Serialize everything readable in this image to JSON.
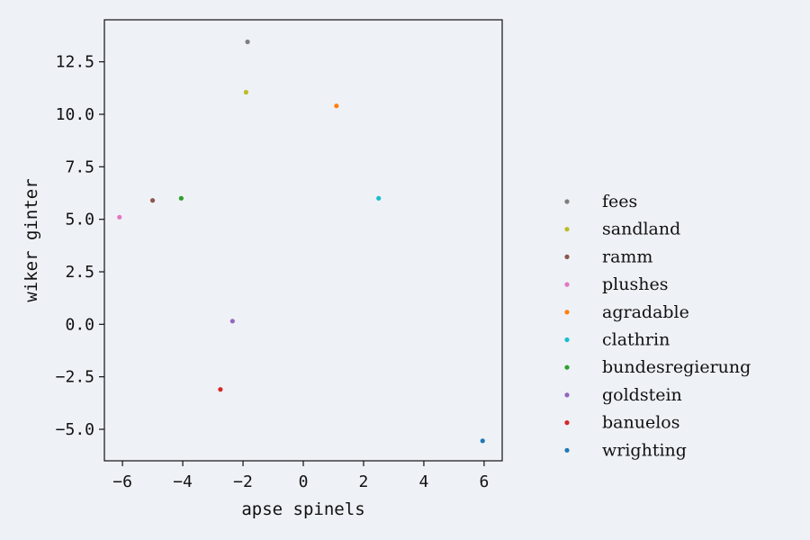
{
  "chart_data": {
    "type": "scatter",
    "title": "",
    "xlabel": "apse spinels",
    "ylabel": "wiker ginter",
    "xlim": [
      -6.6,
      6.6
    ],
    "ylim": [
      -6.5,
      14.5
    ],
    "xticks": [
      -6,
      -4,
      -2,
      0,
      2,
      4,
      6
    ],
    "yticks": [
      -5.0,
      -2.5,
      0.0,
      2.5,
      5.0,
      7.5,
      10.0,
      12.5
    ],
    "xtick_labels": [
      "−6",
      "−4",
      "−2",
      "0",
      "2",
      "4",
      "6"
    ],
    "ytick_labels": [
      "−5.0",
      "−2.5",
      "0.0",
      "2.5",
      "5.0",
      "7.5",
      "10.0",
      "12.5"
    ],
    "grid": false,
    "legend_position": "right",
    "series": [
      {
        "name": "fees",
        "color": "#7f7f7f",
        "x": [
          -1.85
        ],
        "y": [
          13.45
        ]
      },
      {
        "name": "sandland",
        "color": "#bcbd22",
        "x": [
          -1.9
        ],
        "y": [
          11.05
        ]
      },
      {
        "name": "ramm",
        "color": "#8c564b",
        "x": [
          -5.0
        ],
        "y": [
          5.9
        ]
      },
      {
        "name": "plushes",
        "color": "#e377c2",
        "x": [
          -6.1
        ],
        "y": [
          5.1
        ]
      },
      {
        "name": "agradable",
        "color": "#ff7f0e",
        "x": [
          1.1
        ],
        "y": [
          10.4
        ]
      },
      {
        "name": "clathrin",
        "color": "#17becf",
        "x": [
          2.5
        ],
        "y": [
          6.0
        ]
      },
      {
        "name": "bundesregierung",
        "color": "#2ca02c",
        "x": [
          -4.05
        ],
        "y": [
          6.0
        ]
      },
      {
        "name": "goldstein",
        "color": "#9467bd",
        "x": [
          -2.35
        ],
        "y": [
          0.15
        ]
      },
      {
        "name": "banuelos",
        "color": "#d62728",
        "x": [
          -2.75
        ],
        "y": [
          -3.1
        ]
      },
      {
        "name": "wrighting",
        "color": "#1f77b4",
        "x": [
          5.95
        ],
        "y": [
          -5.55
        ]
      }
    ]
  }
}
